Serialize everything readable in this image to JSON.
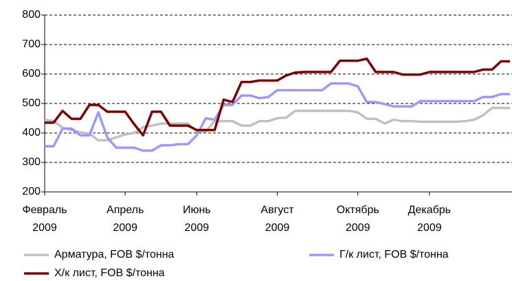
{
  "chart_data": {
    "type": "line",
    "categories": [
      "Февраль\n2009",
      null,
      null,
      null,
      null,
      null,
      null,
      null,
      null,
      "Апрель\n2009",
      null,
      null,
      null,
      null,
      null,
      null,
      null,
      "Июнь\n2009",
      null,
      null,
      null,
      null,
      null,
      null,
      null,
      null,
      "Август\n2009",
      null,
      null,
      null,
      null,
      null,
      null,
      null,
      null,
      "Октябрь\n2009",
      null,
      null,
      null,
      null,
      null,
      null,
      null,
      "Декабрь\n2009",
      null,
      null,
      null,
      null,
      null,
      null,
      null,
      null,
      null
    ],
    "series": [
      {
        "name": "Арматура, FOB $/тонна",
        "color": "#c0c0c0",
        "values": [
          445,
          440,
          418,
          410,
          402,
          398,
          375,
          375,
          385,
          395,
          400,
          420,
          425,
          432,
          432,
          432,
          432,
          405,
          405,
          440,
          440,
          440,
          425,
          425,
          440,
          440,
          450,
          452,
          475,
          475,
          475,
          475,
          475,
          475,
          475,
          470,
          448,
          448,
          432,
          445,
          440,
          440,
          438,
          438,
          438,
          438,
          438,
          440,
          445,
          460,
          485,
          485,
          485
        ]
      },
      {
        "name": "Г/к лист, FOB $/тонна",
        "color": "#9999ff",
        "values": [
          355,
          355,
          415,
          415,
          392,
          392,
          470,
          385,
          350,
          350,
          350,
          340,
          340,
          358,
          358,
          362,
          362,
          392,
          450,
          445,
          495,
          495,
          527,
          527,
          518,
          522,
          545,
          545,
          545,
          545,
          545,
          545,
          568,
          568,
          568,
          558,
          505,
          505,
          498,
          490,
          490,
          490,
          508,
          508,
          508,
          508,
          508,
          508,
          508,
          522,
          522,
          532,
          532
        ]
      },
      {
        "name": "Х/к лист, FOB $/тонна",
        "color": "#800000",
        "values": [
          435,
          435,
          475,
          448,
          448,
          495,
          495,
          472,
          472,
          472,
          430,
          392,
          472,
          472,
          425,
          425,
          425,
          410,
          410,
          410,
          513,
          505,
          573,
          573,
          578,
          578,
          578,
          595,
          605,
          607,
          607,
          607,
          607,
          645,
          645,
          645,
          652,
          607,
          607,
          607,
          598,
          598,
          598,
          607,
          607,
          607,
          607,
          607,
          607,
          615,
          615,
          643,
          643
        ]
      }
    ],
    "ylim": [
      200,
      800
    ],
    "yticks": [
      200,
      300,
      400,
      500,
      600,
      700,
      800
    ],
    "grid": true
  }
}
